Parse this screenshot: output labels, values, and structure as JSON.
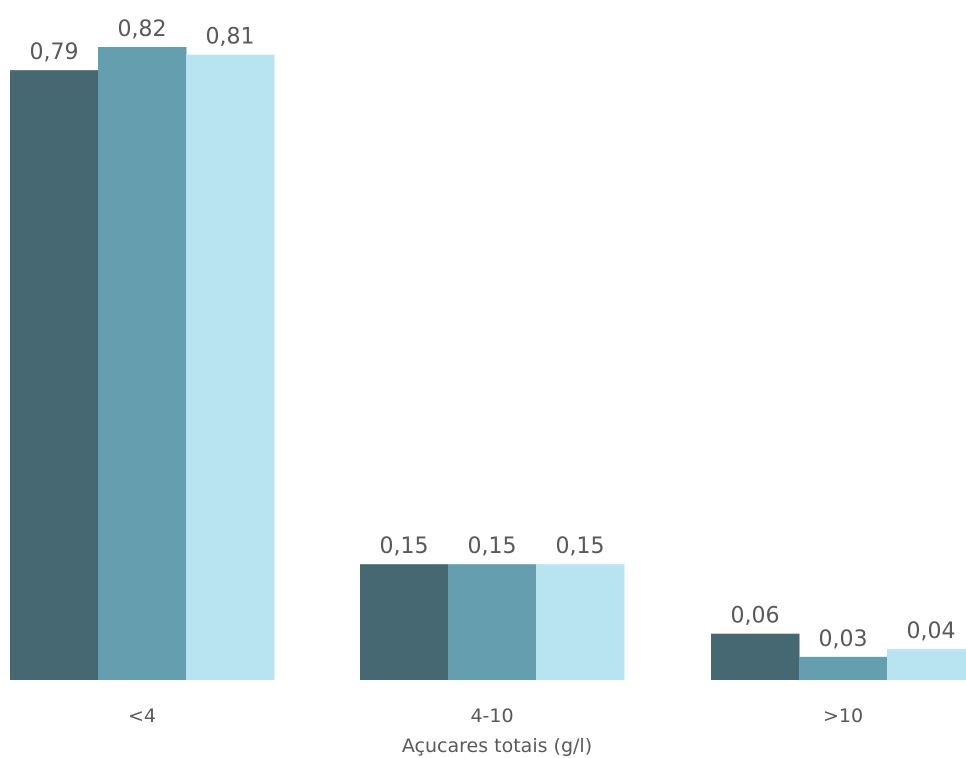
{
  "chart_data": {
    "type": "bar",
    "categories": [
      "<4",
      "4-10",
      ">10"
    ],
    "series": [
      {
        "values": [
          0.79,
          0.15,
          0.06
        ],
        "value_labels": [
          "0,79",
          "0,15",
          "0,06"
        ],
        "color": "#456872"
      },
      {
        "values": [
          0.82,
          0.15,
          0.03
        ],
        "value_labels": [
          "0,82",
          "0,15",
          "0,03"
        ],
        "color": "#649eaf"
      },
      {
        "values": [
          0.81,
          0.15,
          0.04
        ],
        "value_labels": [
          "0,81",
          "0,15",
          "0,04"
        ],
        "color": "#b8e3f1"
      }
    ],
    "xlabel": "Açucares totais (g/l)",
    "ylabel": "",
    "ylim": [
      0,
      0.82
    ],
    "grid": false,
    "legend": "none"
  }
}
